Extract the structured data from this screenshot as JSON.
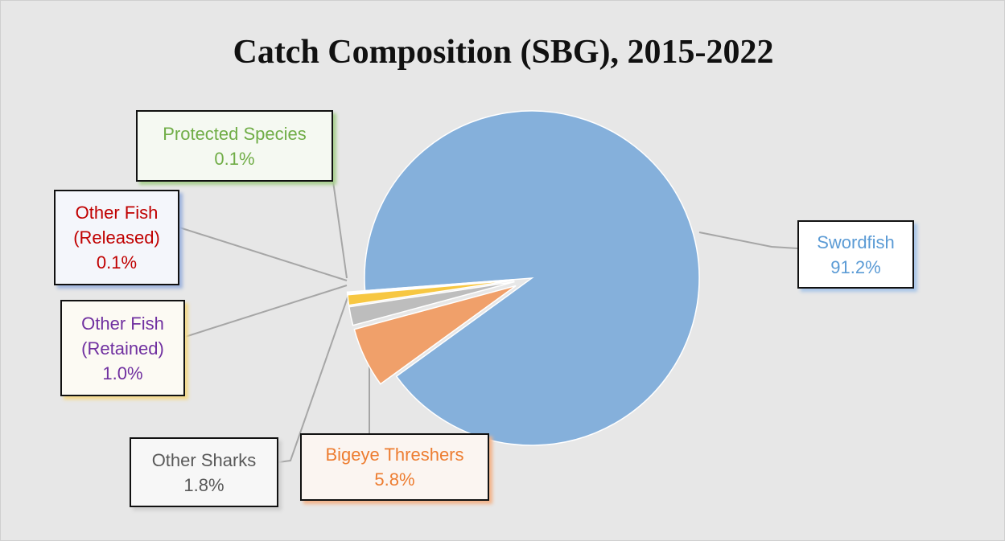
{
  "chart_data": {
    "type": "pie",
    "title": "Catch Composition (SBG), 2015-2022",
    "categories": [
      "Swordfish",
      "Bigeye Threshers",
      "Other Sharks",
      "Other Fish (Retained)",
      "Other Fish (Released)",
      "Protected Species"
    ],
    "values": [
      91.2,
      5.8,
      1.8,
      1.0,
      0.1,
      0.1
    ],
    "value_labels": [
      "91.2%",
      "5.8%",
      "1.8%",
      "1.0%",
      "0.1%",
      "0.1%"
    ],
    "colors": [
      "#85b0db",
      "#f0a06a",
      "#bdbdbd",
      "#f7c742",
      "#4a76c0",
      "#6fb04a"
    ],
    "label_colors": [
      "#5b9bd5",
      "#ed7d31",
      "#595959",
      "#7030a0",
      "#c00000",
      "#70ad47"
    ]
  }
}
